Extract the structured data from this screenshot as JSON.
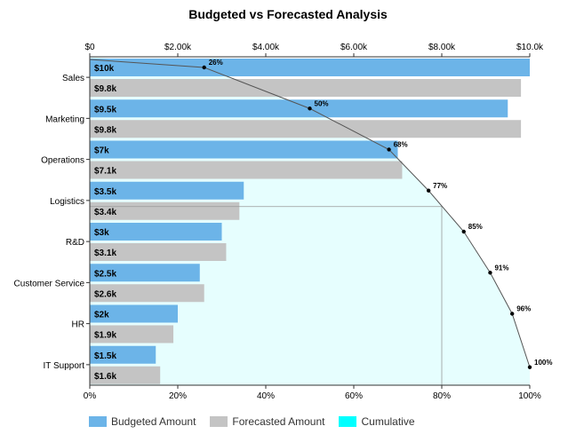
{
  "chart_data": {
    "type": "bar",
    "orientation": "horizontal",
    "title": "Budgeted vs Forecasted Analysis",
    "categories": [
      "Sales",
      "Marketing",
      "Operations",
      "Logistics",
      "R&D",
      "Customer Service",
      "HR",
      "IT Support"
    ],
    "series": [
      {
        "name": "Budgeted Amount",
        "values": [
          10000,
          9500,
          7000,
          3500,
          3000,
          2500,
          2000,
          1500
        ],
        "labels": [
          "$10k",
          "$9.5k",
          "$7k",
          "$3.5k",
          "$3k",
          "$2.5k",
          "$2k",
          "$1.5k"
        ],
        "color": "#6cb4e8"
      },
      {
        "name": "Forecasted Amount",
        "values": [
          9800,
          9800,
          7100,
          3400,
          3100,
          2600,
          1900,
          1600
        ],
        "labels": [
          "$9.8k",
          "$9.8k",
          "$7.1k",
          "$3.4k",
          "$3.1k",
          "$2.6k",
          "$1.9k",
          "$1.6k"
        ],
        "color": "#c4c4c4"
      }
    ],
    "cumulative": {
      "name": "Cumulative",
      "values": [
        26,
        50,
        68,
        77,
        85,
        91,
        96,
        100
      ],
      "labels": [
        "26%",
        "50%",
        "68%",
        "77%",
        "85%",
        "91%",
        "96%",
        "100%"
      ],
      "fill_color": "#e6fefe",
      "legend_color": "#00ffff",
      "line_color": "#555555"
    },
    "x_axis_top": {
      "range": [
        0,
        10000
      ],
      "ticks": [
        0,
        2000,
        4000,
        6000,
        8000,
        10000
      ],
      "tick_labels": [
        "$0",
        "$2.00k",
        "$4.00k",
        "$6.00k",
        "$8.00k",
        "$10.0k"
      ]
    },
    "x_axis_bottom": {
      "range": [
        0,
        100
      ],
      "ticks": [
        0,
        20,
        40,
        60,
        80,
        100
      ],
      "tick_labels": [
        "0%",
        "20%",
        "40%",
        "60%",
        "80%",
        "100%"
      ]
    },
    "crosshair": {
      "percent": 80,
      "category": "Logistics"
    },
    "legend": {
      "position": "bottom-left",
      "items": [
        {
          "label": "Budgeted Amount",
          "color": "#6cb4e8"
        },
        {
          "label": "Forecasted Amount",
          "color": "#c4c4c4"
        },
        {
          "label": "Cumulative",
          "color": "#00ffff"
        }
      ]
    }
  }
}
